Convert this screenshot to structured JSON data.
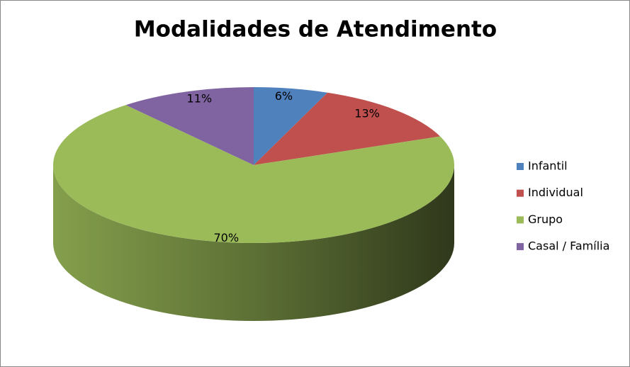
{
  "chart_data": {
    "type": "pie",
    "title": "Modalidades de Atendimento",
    "categories": [
      "Infantil",
      "Individual",
      "Grupo",
      "Casal / Família"
    ],
    "values": [
      6,
      13,
      70,
      11
    ],
    "value_labels": [
      "6%",
      "13%",
      "70%",
      "11%"
    ],
    "colors": [
      "#4f81bd",
      "#c0504d",
      "#9bbb59",
      "#8064a2"
    ],
    "legend": "right"
  }
}
